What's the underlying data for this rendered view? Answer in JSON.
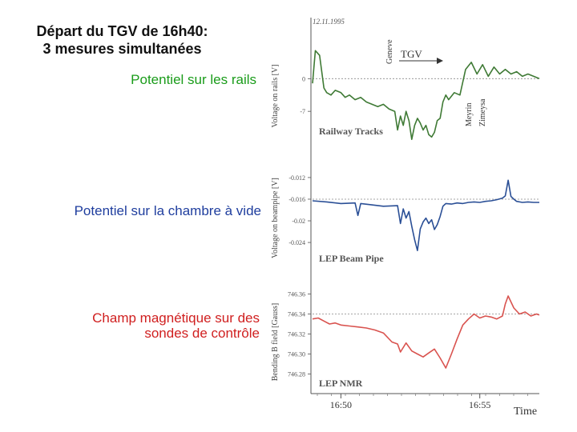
{
  "slide": {
    "title": "Départ du TGV de 16h40:\n3 mesures simultanées",
    "label_rails": "Potentiel sur les rails",
    "label_pipe": "Potentiel sur la chambre à vide",
    "label_nmr": "Champ magnétique  sur des sondes  de contrôle"
  },
  "figure": {
    "date": "12.11.1995",
    "tgv_label": "TGV",
    "station_geneve": "Geneve",
    "station_meyrin": "Meyrin",
    "station_zimeysa": "Zimeysa",
    "time_label": "Time"
  },
  "colors": {
    "rails": "#3f7a35",
    "pipe": "#2a4f96",
    "nmr": "#d9534f",
    "axis": "#555555"
  },
  "chart_data": [
    {
      "type": "line",
      "title": "Railway Tracks",
      "ylabel": "Voltage on rails [V]",
      "y_ticks": [
        "0",
        "-7"
      ],
      "y_tick_values": [
        0,
        -7
      ],
      "ylim": [
        10,
        -14
      ],
      "x_ticks": [
        "16:50",
        "16:55"
      ],
      "xlabel": "Time",
      "series": [
        {
          "x": [
            16.7,
            16.72,
            16.75,
            16.78,
            16.8,
            16.83,
            16.86,
            16.9,
            16.93,
            16.96,
            17.0,
            17.04,
            17.08,
            17.12,
            17.16,
            17.2,
            17.24,
            17.28,
            17.3,
            17.32,
            17.34,
            17.36,
            17.38,
            17.4,
            17.42,
            17.44,
            17.46,
            17.48,
            17.5,
            17.52,
            17.54,
            17.56,
            17.58,
            17.6,
            17.62,
            17.64,
            17.66,
            17.7,
            17.74,
            17.78,
            17.82,
            17.86,
            17.9,
            17.94,
            17.98,
            18.02,
            18.06,
            18.1,
            18.14,
            18.18,
            18.22,
            18.26,
            18.3
          ],
          "y": [
            -1,
            6,
            5,
            -2,
            -3,
            -3.5,
            -2.5,
            -3,
            -4,
            -3.5,
            -4.5,
            -4,
            -5,
            -5.5,
            -6,
            -5.5,
            -6.5,
            -7,
            -11,
            -8,
            -10,
            -7,
            -9,
            -13,
            -10,
            -8.5,
            -9.5,
            -11,
            -10,
            -12,
            -12.5,
            -11.5,
            -9,
            -8.5,
            -5,
            -3.5,
            -4.5,
            -3,
            -3.5,
            2,
            3.5,
            1,
            3,
            0.5,
            2.5,
            1,
            2,
            1,
            1.5,
            0.5,
            1,
            0.5,
            0
          ]
        }
      ]
    },
    {
      "type": "line",
      "title": "LEP Beam Pipe",
      "ylabel": "Voltage on beampipe [V]",
      "y_ticks": [
        "-0.012",
        "-0.016",
        "-0.02",
        "-0.024"
      ],
      "y_tick_values": [
        -0.012,
        -0.016,
        -0.02,
        -0.024
      ],
      "ylim": [
        -0.0095,
        -0.0265
      ],
      "x_ticks": [
        "16:50",
        "16:55"
      ],
      "xlabel": "Time",
      "series": [
        {
          "x": [
            16.7,
            16.8,
            16.9,
            17.0,
            17.02,
            17.04,
            17.1,
            17.2,
            17.3,
            17.32,
            17.34,
            17.36,
            17.38,
            17.4,
            17.42,
            17.44,
            17.46,
            17.48,
            17.5,
            17.52,
            17.54,
            17.56,
            17.58,
            17.6,
            17.62,
            17.64,
            17.68,
            17.72,
            17.76,
            17.8,
            17.84,
            17.88,
            17.92,
            17.96,
            18.0,
            18.04,
            18.06,
            18.08,
            18.1,
            18.12,
            18.14,
            18.18,
            18.22,
            18.26,
            18.3
          ],
          "y": [
            -0.0163,
            -0.0165,
            -0.0168,
            -0.0167,
            -0.019,
            -0.0168,
            -0.017,
            -0.0173,
            -0.0172,
            -0.0205,
            -0.0178,
            -0.0195,
            -0.0183,
            -0.021,
            -0.0235,
            -0.0255,
            -0.0215,
            -0.0202,
            -0.0195,
            -0.0205,
            -0.0198,
            -0.0216,
            -0.0207,
            -0.0192,
            -0.0173,
            -0.0168,
            -0.0169,
            -0.0167,
            -0.0168,
            -0.0166,
            -0.0165,
            -0.0166,
            -0.0164,
            -0.0163,
            -0.0161,
            -0.0158,
            -0.0154,
            -0.0125,
            -0.0155,
            -0.016,
            -0.0164,
            -0.0166,
            -0.0165,
            -0.0166,
            -0.0166
          ]
        }
      ]
    },
    {
      "type": "line",
      "title": "LEP NMR",
      "ylabel": "Bending B field [Gauss]",
      "y_ticks": [
        "746.36",
        "746.34",
        "746.32",
        "746.30",
        "746.28"
      ],
      "y_tick_values": [
        746.36,
        746.34,
        746.32,
        746.3,
        746.28
      ],
      "ylim": [
        746.37,
        746.27
      ],
      "x_ticks": [
        "16:50",
        "16:55"
      ],
      "xlabel": "Time",
      "series": [
        {
          "x": [
            16.7,
            16.74,
            16.78,
            16.82,
            16.86,
            16.9,
            16.96,
            17.02,
            17.08,
            17.14,
            17.2,
            17.26,
            17.3,
            17.32,
            17.36,
            17.4,
            17.44,
            17.48,
            17.52,
            17.56,
            17.6,
            17.64,
            17.68,
            17.72,
            17.76,
            17.8,
            17.84,
            17.88,
            17.92,
            17.96,
            18.0,
            18.04,
            18.06,
            18.08,
            18.12,
            18.16,
            18.2,
            18.24,
            18.28,
            18.3
          ],
          "y": [
            746.335,
            746.336,
            746.333,
            746.33,
            746.331,
            746.329,
            746.328,
            746.327,
            746.326,
            746.324,
            746.321,
            746.312,
            746.31,
            746.302,
            746.311,
            746.303,
            746.3,
            746.297,
            746.301,
            746.305,
            746.296,
            746.286,
            746.3,
            746.315,
            746.329,
            746.335,
            746.34,
            746.336,
            746.338,
            746.337,
            746.335,
            746.338,
            746.35,
            746.358,
            746.346,
            746.34,
            746.342,
            746.338,
            746.34,
            746.339
          ]
        }
      ]
    }
  ]
}
